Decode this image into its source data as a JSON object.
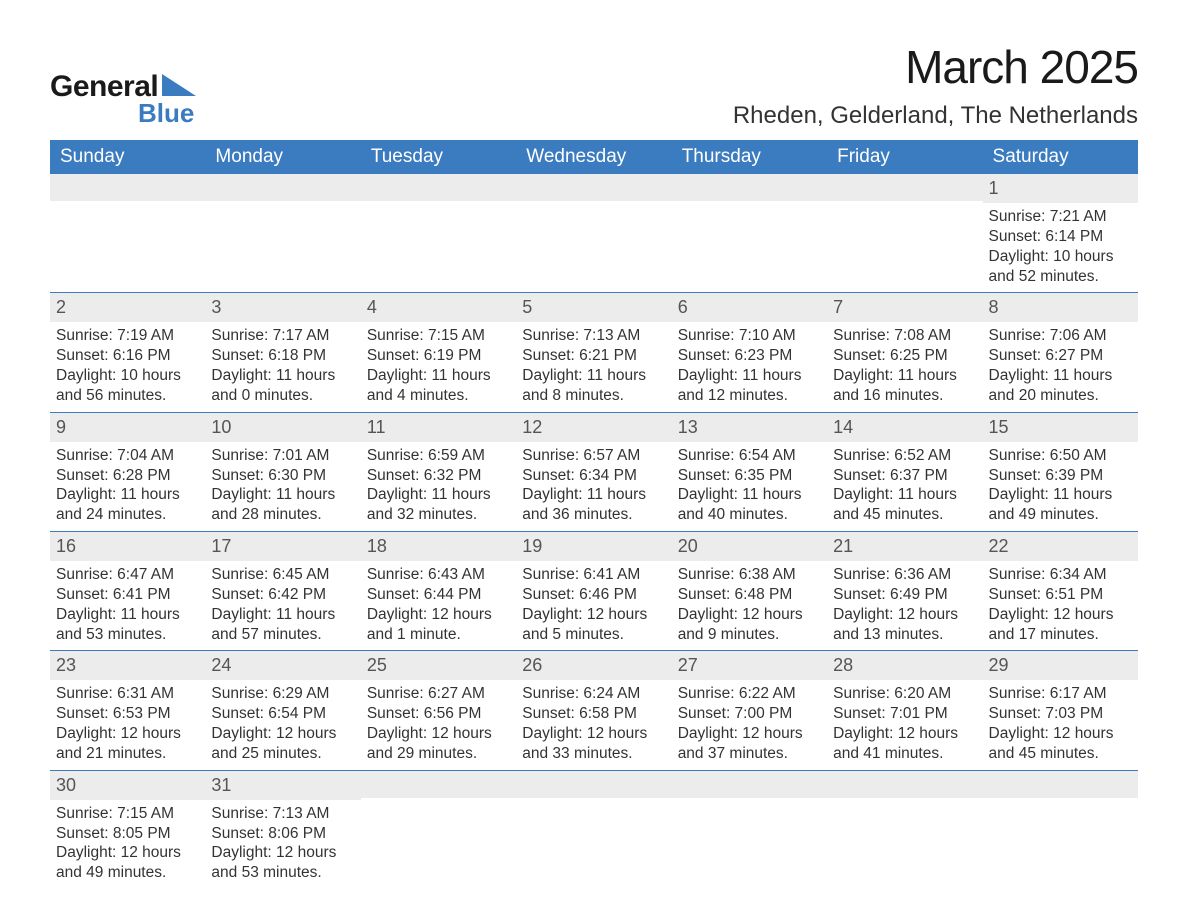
{
  "logo": {
    "text_left": "General",
    "text_right": "Blue",
    "triangle_color": "#3b7bbf"
  },
  "title": {
    "month": "March 2025",
    "location": "Rheden, Gelderland, The Netherlands"
  },
  "colors": {
    "header_bg": "#3b7bbf",
    "header_text": "#ffffff",
    "daynum_bg": "#ececec",
    "daynum_text": "#555555",
    "body_text": "#333333",
    "row_border": "#3b7bbf"
  },
  "typography": {
    "title_fontsize": 46,
    "location_fontsize": 24,
    "dow_fontsize": 19,
    "daynum_fontsize": 18,
    "body_fontsize": 15.5
  },
  "days_of_week": [
    "Sunday",
    "Monday",
    "Tuesday",
    "Wednesday",
    "Thursday",
    "Friday",
    "Saturday"
  ],
  "weeks": [
    [
      null,
      null,
      null,
      null,
      null,
      null,
      {
        "n": "1",
        "sunrise": "Sunrise: 7:21 AM",
        "sunset": "Sunset: 6:14 PM",
        "daylight": "Daylight: 10 hours and 52 minutes."
      }
    ],
    [
      {
        "n": "2",
        "sunrise": "Sunrise: 7:19 AM",
        "sunset": "Sunset: 6:16 PM",
        "daylight": "Daylight: 10 hours and 56 minutes."
      },
      {
        "n": "3",
        "sunrise": "Sunrise: 7:17 AM",
        "sunset": "Sunset: 6:18 PM",
        "daylight": "Daylight: 11 hours and 0 minutes."
      },
      {
        "n": "4",
        "sunrise": "Sunrise: 7:15 AM",
        "sunset": "Sunset: 6:19 PM",
        "daylight": "Daylight: 11 hours and 4 minutes."
      },
      {
        "n": "5",
        "sunrise": "Sunrise: 7:13 AM",
        "sunset": "Sunset: 6:21 PM",
        "daylight": "Daylight: 11 hours and 8 minutes."
      },
      {
        "n": "6",
        "sunrise": "Sunrise: 7:10 AM",
        "sunset": "Sunset: 6:23 PM",
        "daylight": "Daylight: 11 hours and 12 minutes."
      },
      {
        "n": "7",
        "sunrise": "Sunrise: 7:08 AM",
        "sunset": "Sunset: 6:25 PM",
        "daylight": "Daylight: 11 hours and 16 minutes."
      },
      {
        "n": "8",
        "sunrise": "Sunrise: 7:06 AM",
        "sunset": "Sunset: 6:27 PM",
        "daylight": "Daylight: 11 hours and 20 minutes."
      }
    ],
    [
      {
        "n": "9",
        "sunrise": "Sunrise: 7:04 AM",
        "sunset": "Sunset: 6:28 PM",
        "daylight": "Daylight: 11 hours and 24 minutes."
      },
      {
        "n": "10",
        "sunrise": "Sunrise: 7:01 AM",
        "sunset": "Sunset: 6:30 PM",
        "daylight": "Daylight: 11 hours and 28 minutes."
      },
      {
        "n": "11",
        "sunrise": "Sunrise: 6:59 AM",
        "sunset": "Sunset: 6:32 PM",
        "daylight": "Daylight: 11 hours and 32 minutes."
      },
      {
        "n": "12",
        "sunrise": "Sunrise: 6:57 AM",
        "sunset": "Sunset: 6:34 PM",
        "daylight": "Daylight: 11 hours and 36 minutes."
      },
      {
        "n": "13",
        "sunrise": "Sunrise: 6:54 AM",
        "sunset": "Sunset: 6:35 PM",
        "daylight": "Daylight: 11 hours and 40 minutes."
      },
      {
        "n": "14",
        "sunrise": "Sunrise: 6:52 AM",
        "sunset": "Sunset: 6:37 PM",
        "daylight": "Daylight: 11 hours and 45 minutes."
      },
      {
        "n": "15",
        "sunrise": "Sunrise: 6:50 AM",
        "sunset": "Sunset: 6:39 PM",
        "daylight": "Daylight: 11 hours and 49 minutes."
      }
    ],
    [
      {
        "n": "16",
        "sunrise": "Sunrise: 6:47 AM",
        "sunset": "Sunset: 6:41 PM",
        "daylight": "Daylight: 11 hours and 53 minutes."
      },
      {
        "n": "17",
        "sunrise": "Sunrise: 6:45 AM",
        "sunset": "Sunset: 6:42 PM",
        "daylight": "Daylight: 11 hours and 57 minutes."
      },
      {
        "n": "18",
        "sunrise": "Sunrise: 6:43 AM",
        "sunset": "Sunset: 6:44 PM",
        "daylight": "Daylight: 12 hours and 1 minute."
      },
      {
        "n": "19",
        "sunrise": "Sunrise: 6:41 AM",
        "sunset": "Sunset: 6:46 PM",
        "daylight": "Daylight: 12 hours and 5 minutes."
      },
      {
        "n": "20",
        "sunrise": "Sunrise: 6:38 AM",
        "sunset": "Sunset: 6:48 PM",
        "daylight": "Daylight: 12 hours and 9 minutes."
      },
      {
        "n": "21",
        "sunrise": "Sunrise: 6:36 AM",
        "sunset": "Sunset: 6:49 PM",
        "daylight": "Daylight: 12 hours and 13 minutes."
      },
      {
        "n": "22",
        "sunrise": "Sunrise: 6:34 AM",
        "sunset": "Sunset: 6:51 PM",
        "daylight": "Daylight: 12 hours and 17 minutes."
      }
    ],
    [
      {
        "n": "23",
        "sunrise": "Sunrise: 6:31 AM",
        "sunset": "Sunset: 6:53 PM",
        "daylight": "Daylight: 12 hours and 21 minutes."
      },
      {
        "n": "24",
        "sunrise": "Sunrise: 6:29 AM",
        "sunset": "Sunset: 6:54 PM",
        "daylight": "Daylight: 12 hours and 25 minutes."
      },
      {
        "n": "25",
        "sunrise": "Sunrise: 6:27 AM",
        "sunset": "Sunset: 6:56 PM",
        "daylight": "Daylight: 12 hours and 29 minutes."
      },
      {
        "n": "26",
        "sunrise": "Sunrise: 6:24 AM",
        "sunset": "Sunset: 6:58 PM",
        "daylight": "Daylight: 12 hours and 33 minutes."
      },
      {
        "n": "27",
        "sunrise": "Sunrise: 6:22 AM",
        "sunset": "Sunset: 7:00 PM",
        "daylight": "Daylight: 12 hours and 37 minutes."
      },
      {
        "n": "28",
        "sunrise": "Sunrise: 6:20 AM",
        "sunset": "Sunset: 7:01 PM",
        "daylight": "Daylight: 12 hours and 41 minutes."
      },
      {
        "n": "29",
        "sunrise": "Sunrise: 6:17 AM",
        "sunset": "Sunset: 7:03 PM",
        "daylight": "Daylight: 12 hours and 45 minutes."
      }
    ],
    [
      {
        "n": "30",
        "sunrise": "Sunrise: 7:15 AM",
        "sunset": "Sunset: 8:05 PM",
        "daylight": "Daylight: 12 hours and 49 minutes."
      },
      {
        "n": "31",
        "sunrise": "Sunrise: 7:13 AM",
        "sunset": "Sunset: 8:06 PM",
        "daylight": "Daylight: 12 hours and 53 minutes."
      },
      null,
      null,
      null,
      null,
      null
    ]
  ]
}
